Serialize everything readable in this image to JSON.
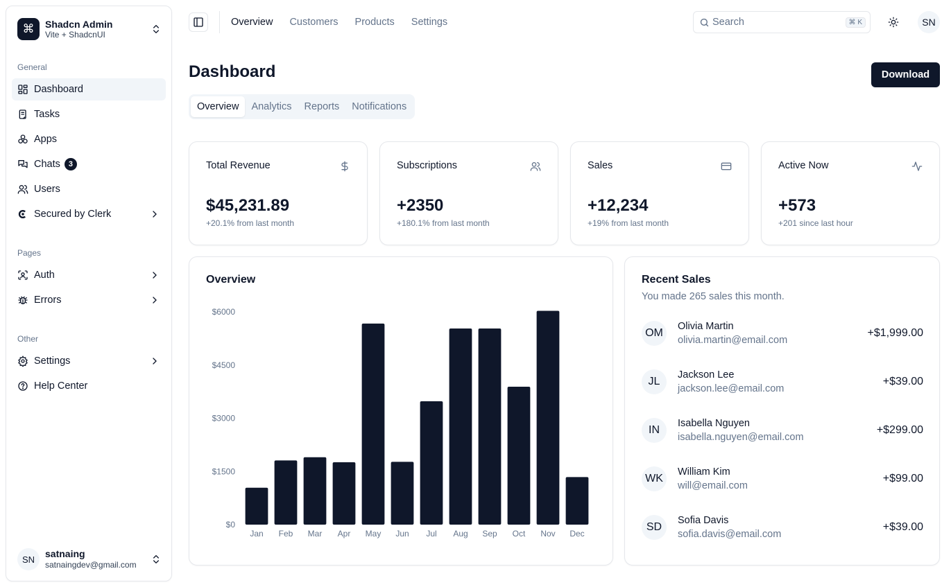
{
  "sidebar": {
    "team": {
      "name": "Shadcn Admin",
      "plan": "Vite + ShadcnUI",
      "logo_glyph": "⌘"
    },
    "groups": [
      {
        "label": "General"
      },
      {
        "label": "Pages"
      },
      {
        "label": "Other"
      }
    ],
    "items": [
      {
        "label": "Dashboard",
        "icon": "layout-dashboard-icon"
      },
      {
        "label": "Tasks",
        "icon": "clipboard-icon"
      },
      {
        "label": "Apps",
        "icon": "apps-icon"
      },
      {
        "label": "Chats",
        "icon": "messages-icon",
        "badge": "3"
      },
      {
        "label": "Users",
        "icon": "users-icon"
      },
      {
        "label": "Secured by Clerk",
        "icon": "clerk-logo-icon"
      },
      {
        "label": "Auth",
        "icon": "user-scan-icon"
      },
      {
        "label": "Errors",
        "icon": "bug-icon"
      },
      {
        "label": "Settings",
        "icon": "gear-icon"
      },
      {
        "label": "Help Center",
        "icon": "help-circle-icon"
      }
    ],
    "user": {
      "initials": "SN",
      "name": "satnaing",
      "email": "satnaingdev@gmail.com"
    }
  },
  "header": {
    "nav": [
      "Overview",
      "Customers",
      "Products",
      "Settings"
    ],
    "search": {
      "placeholder": "Search",
      "shortcut": "⌘ K"
    },
    "avatar": "SN"
  },
  "page": {
    "title": "Dashboard",
    "download_label": "Download",
    "tabs": [
      "Overview",
      "Analytics",
      "Reports",
      "Notifications"
    ]
  },
  "stats": [
    {
      "title": "Total Revenue",
      "value": "$45,231.89",
      "sub": "+20.1% from last month",
      "icon": "dollar-icon"
    },
    {
      "title": "Subscriptions",
      "value": "+2350",
      "sub": "+180.1% from last month",
      "icon": "users-icon"
    },
    {
      "title": "Sales",
      "value": "+12,234",
      "sub": "+19% from last month",
      "icon": "credit-card-icon"
    },
    {
      "title": "Active Now",
      "value": "+573",
      "sub": "+201 since last hour",
      "icon": "activity-icon"
    }
  ],
  "overview": {
    "title": "Overview"
  },
  "chart_data": {
    "type": "bar",
    "title": "Overview",
    "categories": [
      "Jan",
      "Feb",
      "Mar",
      "Apr",
      "May",
      "Jun",
      "Jul",
      "Aug",
      "Sep",
      "Oct",
      "Nov",
      "Dec"
    ],
    "values": [
      1040,
      1810,
      1900,
      1760,
      5670,
      1770,
      3480,
      5530,
      5530,
      3890,
      6030,
      1340
    ],
    "yticks": [
      "$0",
      "$1500",
      "$3000",
      "$4500",
      "$6000"
    ],
    "ylim": [
      0,
      6000
    ],
    "grid": false,
    "bar_color": "#0f172a"
  },
  "recent_sales": {
    "title": "Recent Sales",
    "subtitle": "You made 265 sales this month.",
    "rows": [
      {
        "initials": "OM",
        "name": "Olivia Martin",
        "email": "olivia.martin@email.com",
        "amount": "+$1,999.00"
      },
      {
        "initials": "JL",
        "name": "Jackson Lee",
        "email": "jackson.lee@email.com",
        "amount": "+$39.00"
      },
      {
        "initials": "IN",
        "name": "Isabella Nguyen",
        "email": "isabella.nguyen@email.com",
        "amount": "+$299.00"
      },
      {
        "initials": "WK",
        "name": "William Kim",
        "email": "will@email.com",
        "amount": "+$99.00"
      },
      {
        "initials": "SD",
        "name": "Sofia Davis",
        "email": "sofia.davis@email.com",
        "amount": "+$39.00"
      }
    ]
  }
}
